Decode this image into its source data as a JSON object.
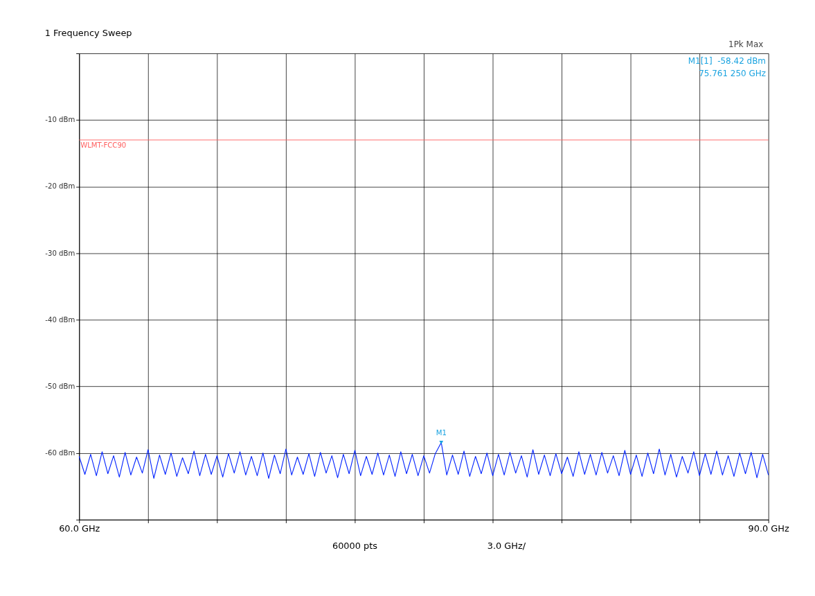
{
  "chart_data": {
    "type": "line",
    "title": "1 Frequency Sweep",
    "xlim": [
      60,
      90
    ],
    "xticks": [
      {
        "value": 60,
        "label": "60.0 GHz"
      },
      {
        "value": 63,
        "label": null
      },
      {
        "value": 66,
        "label": null
      },
      {
        "value": 69,
        "label": null
      },
      {
        "value": 72,
        "label": null
      },
      {
        "value": 75,
        "label": null
      },
      {
        "value": 78,
        "label": null
      },
      {
        "value": 81,
        "label": null
      },
      {
        "value": 84,
        "label": null
      },
      {
        "value": 87,
        "label": null
      },
      {
        "value": 90,
        "label": "90.0 GHz"
      }
    ],
    "ylim": [
      -70,
      0
    ],
    "yticks": [
      {
        "value": 0,
        "label": null
      },
      {
        "value": -10,
        "label": "-10 dBm"
      },
      {
        "value": -20,
        "label": "-20 dBm"
      },
      {
        "value": -30,
        "label": "-30 dBm"
      },
      {
        "value": -40,
        "label": "-40 dBm"
      },
      {
        "value": -50,
        "label": "-50 dBm"
      },
      {
        "value": -60,
        "label": "-60 dBm"
      },
      {
        "value": -70,
        "label": null
      }
    ],
    "grid": true,
    "marker": "none",
    "line_style": "solid",
    "x": [
      60,
      60.25,
      60.5,
      60.75,
      61,
      61.25,
      61.5,
      61.75,
      62,
      62.25,
      62.5,
      62.75,
      63,
      63.25,
      63.5,
      63.75,
      64,
      64.25,
      64.5,
      64.75,
      65,
      65.25,
      65.5,
      65.75,
      66,
      66.25,
      66.5,
      66.75,
      67,
      67.25,
      67.5,
      67.75,
      68,
      68.25,
      68.5,
      68.75,
      69,
      69.25,
      69.5,
      69.75,
      70,
      70.25,
      70.5,
      70.75,
      71,
      71.25,
      71.5,
      71.75,
      72,
      72.25,
      72.5,
      72.75,
      73,
      73.25,
      73.5,
      73.75,
      74,
      74.25,
      74.5,
      74.75,
      75,
      75.25,
      75.5,
      75.76125,
      76,
      76.25,
      76.5,
      76.75,
      77,
      77.25,
      77.5,
      77.75,
      78,
      78.25,
      78.5,
      78.75,
      79,
      79.25,
      79.5,
      79.75,
      80,
      80.25,
      80.5,
      80.75,
      81,
      81.25,
      81.5,
      81.75,
      82,
      82.25,
      82.5,
      82.75,
      83,
      83.25,
      83.5,
      83.75,
      84,
      84.25,
      84.5,
      84.75,
      85,
      85.25,
      85.5,
      85.75,
      86,
      86.25,
      86.5,
      86.75,
      87,
      87.25,
      87.5,
      87.75,
      88,
      88.25,
      88.5,
      88.75,
      89,
      89.25,
      89.5,
      89.75,
      90
    ],
    "series": [
      {
        "color": "#0022ff",
        "values": [
          -60.5,
          -63.2,
          -60.2,
          -63.4,
          -59.8,
          -63.1,
          -60.4,
          -63.6,
          -59.9,
          -63.3,
          -60.6,
          -63.0,
          -59.5,
          -63.8,
          -60.3,
          -63.2,
          -60.0,
          -63.5,
          -60.7,
          -63.1,
          -59.7,
          -63.4,
          -60.2,
          -63.2,
          -60.4,
          -63.6,
          -60.1,
          -63.0,
          -59.8,
          -63.3,
          -60.5,
          -63.4,
          -60.0,
          -63.8,
          -60.3,
          -63.1,
          -59.4,
          -63.3,
          -60.6,
          -63.2,
          -60.1,
          -63.5,
          -59.9,
          -63.0,
          -60.4,
          -63.7,
          -60.2,
          -63.1,
          -59.6,
          -63.4,
          -60.5,
          -63.2,
          -60.0,
          -63.3,
          -60.3,
          -63.5,
          -59.8,
          -63.1,
          -60.2,
          -63.4,
          -60.4,
          -63.0,
          -60.1,
          -58.42,
          -63.3,
          -60.3,
          -63.2,
          -59.7,
          -63.5,
          -60.5,
          -63.1,
          -60.0,
          -63.4,
          -60.2,
          -63.3,
          -59.9,
          -63.0,
          -60.4,
          -63.6,
          -59.5,
          -63.2,
          -60.3,
          -63.4,
          -60.1,
          -63.1,
          -60.6,
          -63.5,
          -59.8,
          -63.2,
          -60.2,
          -63.3,
          -59.9,
          -63.0,
          -60.4,
          -63.4,
          -59.6,
          -63.2,
          -60.3,
          -63.5,
          -60.0,
          -63.1,
          -59.4,
          -63.3,
          -60.2,
          -63.6,
          -60.5,
          -63.0,
          -59.8,
          -63.4,
          -60.1,
          -63.2,
          -59.7,
          -63.3,
          -60.4,
          -63.5,
          -60.0,
          -63.1,
          -59.9,
          -63.7,
          -60.2,
          -63.3
        ]
      }
    ],
    "ref_lines": [
      {
        "axis": "y",
        "value": -13,
        "label": "WLMT-FCC90",
        "color": "#ff6060"
      }
    ],
    "annotations": [
      {
        "text": "M1",
        "x": 75.76125,
        "y": -58.42
      },
      "1Pk Max",
      "M1[1]",
      "-58.42 dBm",
      "75.761 250 GHz",
      "60000 pts",
      "3.0 GHz/"
    ]
  }
}
